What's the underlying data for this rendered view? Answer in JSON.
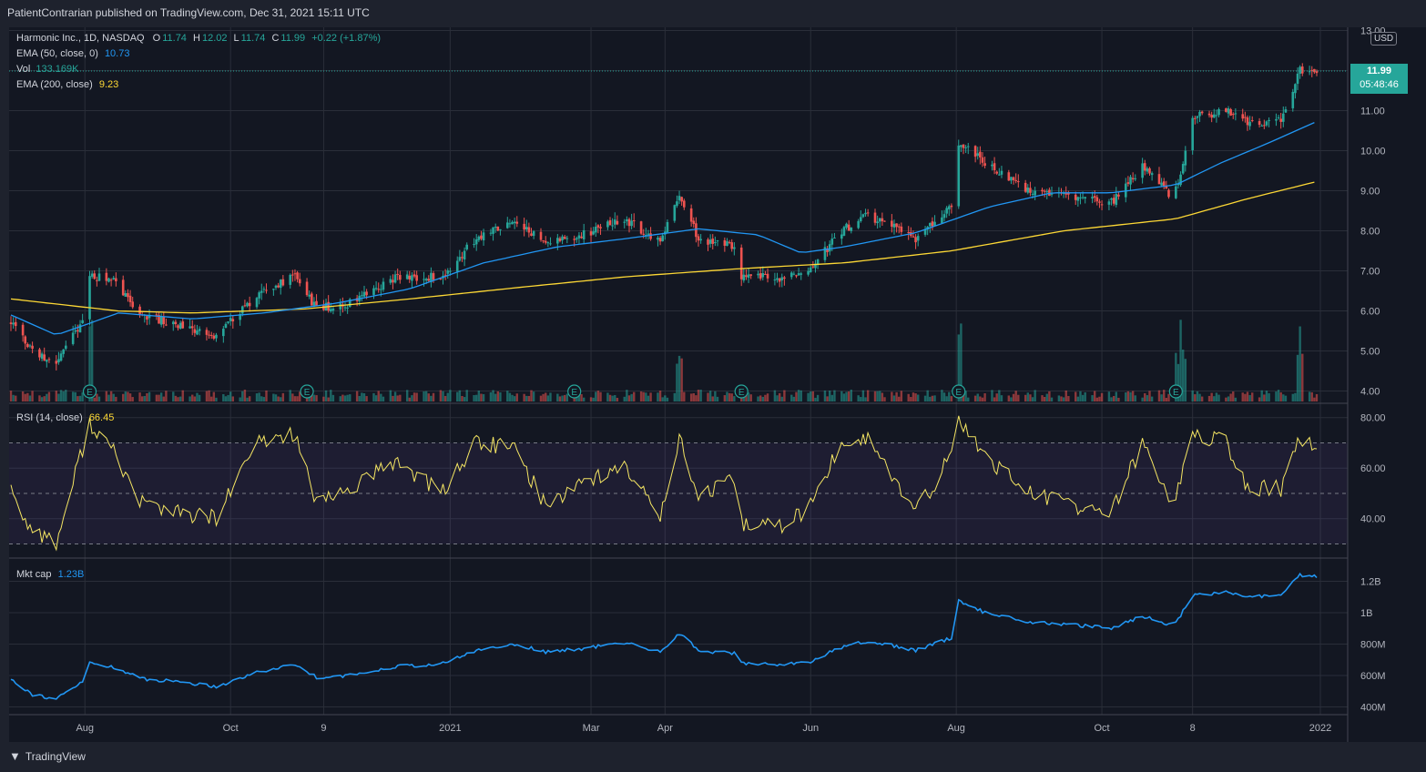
{
  "header": {
    "publish_text": "PatientContrarian published on TradingView.com, Dec 31, 2021 15:11 UTC"
  },
  "footer": {
    "logo_text": "TradingView"
  },
  "legend": {
    "symbol": "Harmonic Inc., 1D, NASDAQ",
    "o_label": "O",
    "o_val": "11.74",
    "h_label": "H",
    "h_val": "12.02",
    "l_label": "L",
    "l_val": "11.74",
    "c_label": "C",
    "c_val": "11.99",
    "change": "+0.22 (+1.87%)",
    "ema50_label": "EMA (50, close, 0)",
    "ema50_val": "10.73",
    "vol_label": "Vol",
    "vol_val": "133.169K",
    "ema200_label": "EMA (200, close)",
    "ema200_val": "9.23",
    "rsi_label": "RSI (14, close)",
    "rsi_val": "66.45",
    "mcap_label": "Mkt cap",
    "mcap_val": "1.23B"
  },
  "currency": "USD",
  "price_label": {
    "price": "11.99",
    "countdown": "05:48:46"
  },
  "colors": {
    "up": "#26a69a",
    "down": "#ef5350",
    "ema50": "#2196f3",
    "ema200": "#fdd835",
    "rsi": "#f5e663",
    "mcap": "#2196f3",
    "grid": "#2a2e39"
  },
  "chart_data": [
    {
      "type": "candlestick",
      "title": "Harmonic Inc., 1D, NASDAQ",
      "x_tick_labels": [
        "Aug",
        "Oct",
        "9",
        "2021",
        "Mar",
        "Apr",
        "Jun",
        "Aug",
        "Oct",
        "8",
        "2022"
      ],
      "y_tick_labels": [
        "13.00",
        "11.00",
        "10.00",
        "9.00",
        "8.00",
        "7.00",
        "6.00",
        "5.00",
        "4.00"
      ],
      "ylim": [
        3.9,
        13.0
      ],
      "close_anchors": [
        {
          "x": "2020-07-01",
          "y": 5.75
        },
        {
          "x": "2020-07-10",
          "y": 5.0
        },
        {
          "x": "2020-07-20",
          "y": 4.7
        },
        {
          "x": "2020-07-31",
          "y": 5.75
        },
        {
          "x": "2020-08-03",
          "y": 6.9
        },
        {
          "x": "2020-08-14",
          "y": 6.7
        },
        {
          "x": "2020-08-24",
          "y": 5.95
        },
        {
          "x": "2020-09-10",
          "y": 5.6
        },
        {
          "x": "2020-09-25",
          "y": 5.35
        },
        {
          "x": "2020-10-12",
          "y": 6.4
        },
        {
          "x": "2020-10-28",
          "y": 6.9
        },
        {
          "x": "2020-11-06",
          "y": 6.05
        },
        {
          "x": "2020-11-20",
          "y": 6.2
        },
        {
          "x": "2020-12-10",
          "y": 6.85
        },
        {
          "x": "2020-12-28",
          "y": 6.85
        },
        {
          "x": "2021-01-12",
          "y": 7.8
        },
        {
          "x": "2021-01-28",
          "y": 8.3
        },
        {
          "x": "2021-02-10",
          "y": 7.7
        },
        {
          "x": "2021-02-25",
          "y": 7.9
        },
        {
          "x": "2021-03-15",
          "y": 8.3
        },
        {
          "x": "2021-03-30",
          "y": 7.7
        },
        {
          "x": "2021-04-07",
          "y": 8.9
        },
        {
          "x": "2021-04-15",
          "y": 7.8
        },
        {
          "x": "2021-04-30",
          "y": 7.6
        },
        {
          "x": "2021-05-03",
          "y": 6.9
        },
        {
          "x": "2021-05-20",
          "y": 6.8
        },
        {
          "x": "2021-06-01",
          "y": 7.05
        },
        {
          "x": "2021-06-14",
          "y": 8.0
        },
        {
          "x": "2021-06-25",
          "y": 8.4
        },
        {
          "x": "2021-07-15",
          "y": 7.8
        },
        {
          "x": "2021-07-30",
          "y": 8.6
        },
        {
          "x": "2021-08-02",
          "y": 10.2
        },
        {
          "x": "2021-08-13",
          "y": 9.7
        },
        {
          "x": "2021-09-01",
          "y": 9.0
        },
        {
          "x": "2021-09-20",
          "y": 8.85
        },
        {
          "x": "2021-10-05",
          "y": 8.7
        },
        {
          "x": "2021-10-18",
          "y": 9.6
        },
        {
          "x": "2021-10-26",
          "y": 9.2
        },
        {
          "x": "2021-10-29",
          "y": 8.9
        },
        {
          "x": "2021-11-02",
          "y": 9.2
        },
        {
          "x": "2021-11-08",
          "y": 10.85
        },
        {
          "x": "2021-11-22",
          "y": 11.0
        },
        {
          "x": "2021-12-01",
          "y": 10.7
        },
        {
          "x": "2021-12-15",
          "y": 10.75
        },
        {
          "x": "2021-12-23",
          "y": 12.0
        },
        {
          "x": "2021-12-30",
          "y": 11.99
        }
      ],
      "ema50_anchors": [
        {
          "x": "2020-07-01",
          "y": 5.9
        },
        {
          "x": "2020-07-20",
          "y": 5.4
        },
        {
          "x": "2020-08-01",
          "y": 5.65
        },
        {
          "x": "2020-08-15",
          "y": 5.95
        },
        {
          "x": "2020-09-15",
          "y": 5.8
        },
        {
          "x": "2020-10-15",
          "y": 5.95
        },
        {
          "x": "2020-11-15",
          "y": 6.2
        },
        {
          "x": "2020-12-15",
          "y": 6.55
        },
        {
          "x": "2021-01-15",
          "y": 7.2
        },
        {
          "x": "2021-02-15",
          "y": 7.6
        },
        {
          "x": "2021-03-15",
          "y": 7.8
        },
        {
          "x": "2021-04-15",
          "y": 8.05
        },
        {
          "x": "2021-05-10",
          "y": 7.9
        },
        {
          "x": "2021-05-28",
          "y": 7.45
        },
        {
          "x": "2021-06-15",
          "y": 7.6
        },
        {
          "x": "2021-07-15",
          "y": 7.95
        },
        {
          "x": "2021-08-15",
          "y": 8.6
        },
        {
          "x": "2021-09-10",
          "y": 8.95
        },
        {
          "x": "2021-10-05",
          "y": 8.95
        },
        {
          "x": "2021-11-01",
          "y": 9.15
        },
        {
          "x": "2021-11-20",
          "y": 9.7
        },
        {
          "x": "2021-12-10",
          "y": 10.2
        },
        {
          "x": "2021-12-30",
          "y": 10.73
        }
      ],
      "ema200_anchors": [
        {
          "x": "2020-07-01",
          "y": 6.3
        },
        {
          "x": "2020-08-15",
          "y": 6.0
        },
        {
          "x": "2020-09-15",
          "y": 5.95
        },
        {
          "x": "2020-11-01",
          "y": 6.05
        },
        {
          "x": "2020-12-15",
          "y": 6.3
        },
        {
          "x": "2021-02-01",
          "y": 6.6
        },
        {
          "x": "2021-03-15",
          "y": 6.85
        },
        {
          "x": "2021-05-01",
          "y": 7.05
        },
        {
          "x": "2021-06-15",
          "y": 7.2
        },
        {
          "x": "2021-07-30",
          "y": 7.5
        },
        {
          "x": "2021-09-15",
          "y": 8.0
        },
        {
          "x": "2021-11-01",
          "y": 8.3
        },
        {
          "x": "2021-12-01",
          "y": 8.8
        },
        {
          "x": "2021-12-30",
          "y": 9.23
        }
      ],
      "earnings_dates": [
        "2020-08-03",
        "2020-11-02",
        "2021-02-22",
        "2021-05-03",
        "2021-08-02",
        "2021-11-01"
      ],
      "volume_spike_dates": [
        "2020-08-03",
        "2021-04-07",
        "2021-08-02",
        "2021-11-01",
        "2021-11-04",
        "2021-12-23"
      ]
    },
    {
      "type": "line",
      "title": "RSI (14, close)",
      "y_tick_labels": [
        "80.00",
        "60.00",
        "40.00"
      ],
      "ylim": [
        27,
        82
      ],
      "bands": [
        30,
        50,
        70
      ],
      "anchors": [
        {
          "x": "2020-07-01",
          "y": 55
        },
        {
          "x": "2020-07-05",
          "y": 40
        },
        {
          "x": "2020-07-20",
          "y": 30
        },
        {
          "x": "2020-07-31",
          "y": 68
        },
        {
          "x": "2020-08-03",
          "y": 78
        },
        {
          "x": "2020-08-14",
          "y": 65
        },
        {
          "x": "2020-08-24",
          "y": 47
        },
        {
          "x": "2020-09-10",
          "y": 42
        },
        {
          "x": "2020-09-25",
          "y": 40
        },
        {
          "x": "2020-10-12",
          "y": 70
        },
        {
          "x": "2020-10-28",
          "y": 74
        },
        {
          "x": "2020-11-06",
          "y": 45
        },
        {
          "x": "2020-11-20",
          "y": 52
        },
        {
          "x": "2020-12-10",
          "y": 63
        },
        {
          "x": "2020-12-28",
          "y": 50
        },
        {
          "x": "2021-01-12",
          "y": 70
        },
        {
          "x": "2021-01-28",
          "y": 68
        },
        {
          "x": "2021-02-10",
          "y": 45
        },
        {
          "x": "2021-02-25",
          "y": 55
        },
        {
          "x": "2021-03-15",
          "y": 60
        },
        {
          "x": "2021-03-30",
          "y": 42
        },
        {
          "x": "2021-04-07",
          "y": 72
        },
        {
          "x": "2021-04-15",
          "y": 48
        },
        {
          "x": "2021-04-30",
          "y": 55
        },
        {
          "x": "2021-05-03",
          "y": 38
        },
        {
          "x": "2021-05-20",
          "y": 37
        },
        {
          "x": "2021-06-01",
          "y": 45
        },
        {
          "x": "2021-06-14",
          "y": 70
        },
        {
          "x": "2021-06-25",
          "y": 72
        },
        {
          "x": "2021-07-15",
          "y": 42
        },
        {
          "x": "2021-07-30",
          "y": 65
        },
        {
          "x": "2021-08-02",
          "y": 79
        },
        {
          "x": "2021-08-13",
          "y": 65
        },
        {
          "x": "2021-09-01",
          "y": 50
        },
        {
          "x": "2021-09-20",
          "y": 45
        },
        {
          "x": "2021-10-05",
          "y": 42
        },
        {
          "x": "2021-10-18",
          "y": 70
        },
        {
          "x": "2021-10-26",
          "y": 55
        },
        {
          "x": "2021-10-29",
          "y": 46
        },
        {
          "x": "2021-11-02",
          "y": 52
        },
        {
          "x": "2021-11-08",
          "y": 74
        },
        {
          "x": "2021-11-22",
          "y": 70
        },
        {
          "x": "2021-12-01",
          "y": 52
        },
        {
          "x": "2021-12-15",
          "y": 52
        },
        {
          "x": "2021-12-23",
          "y": 72
        },
        {
          "x": "2021-12-30",
          "y": 66.45
        }
      ]
    },
    {
      "type": "line",
      "title": "Mkt cap",
      "y_tick_labels": [
        "1.2B",
        "1B",
        "800M",
        "600M",
        "400M"
      ],
      "ylim": [
        370,
        1290
      ],
      "anchors": [
        {
          "x": "2020-07-01",
          "y": 580
        },
        {
          "x": "2020-07-10",
          "y": 480
        },
        {
          "x": "2020-07-20",
          "y": 450
        },
        {
          "x": "2020-07-31",
          "y": 560
        },
        {
          "x": "2020-08-03",
          "y": 680
        },
        {
          "x": "2020-08-14",
          "y": 650
        },
        {
          "x": "2020-08-24",
          "y": 580
        },
        {
          "x": "2020-09-10",
          "y": 560
        },
        {
          "x": "2020-09-25",
          "y": 530
        },
        {
          "x": "2020-10-12",
          "y": 620
        },
        {
          "x": "2020-10-28",
          "y": 670
        },
        {
          "x": "2020-11-06",
          "y": 590
        },
        {
          "x": "2020-11-20",
          "y": 600
        },
        {
          "x": "2020-12-10",
          "y": 660
        },
        {
          "x": "2020-12-28",
          "y": 670
        },
        {
          "x": "2021-01-12",
          "y": 760
        },
        {
          "x": "2021-01-28",
          "y": 800
        },
        {
          "x": "2021-02-10",
          "y": 750
        },
        {
          "x": "2021-02-25",
          "y": 770
        },
        {
          "x": "2021-03-15",
          "y": 810
        },
        {
          "x": "2021-03-30",
          "y": 750
        },
        {
          "x": "2021-04-07",
          "y": 870
        },
        {
          "x": "2021-04-15",
          "y": 760
        },
        {
          "x": "2021-04-30",
          "y": 740
        },
        {
          "x": "2021-05-03",
          "y": 680
        },
        {
          "x": "2021-05-20",
          "y": 670
        },
        {
          "x": "2021-06-01",
          "y": 690
        },
        {
          "x": "2021-06-14",
          "y": 780
        },
        {
          "x": "2021-06-25",
          "y": 820
        },
        {
          "x": "2021-07-15",
          "y": 760
        },
        {
          "x": "2021-07-30",
          "y": 840
        },
        {
          "x": "2021-08-02",
          "y": 1080
        },
        {
          "x": "2021-08-13",
          "y": 1000
        },
        {
          "x": "2021-09-01",
          "y": 940
        },
        {
          "x": "2021-09-20",
          "y": 920
        },
        {
          "x": "2021-10-05",
          "y": 900
        },
        {
          "x": "2021-10-18",
          "y": 980
        },
        {
          "x": "2021-10-26",
          "y": 940
        },
        {
          "x": "2021-10-29",
          "y": 920
        },
        {
          "x": "2021-11-02",
          "y": 960
        },
        {
          "x": "2021-11-08",
          "y": 1110
        },
        {
          "x": "2021-11-22",
          "y": 1130
        },
        {
          "x": "2021-12-01",
          "y": 1100
        },
        {
          "x": "2021-12-15",
          "y": 1110
        },
        {
          "x": "2021-12-23",
          "y": 1240
        },
        {
          "x": "2021-12-30",
          "y": 1230
        }
      ]
    }
  ]
}
